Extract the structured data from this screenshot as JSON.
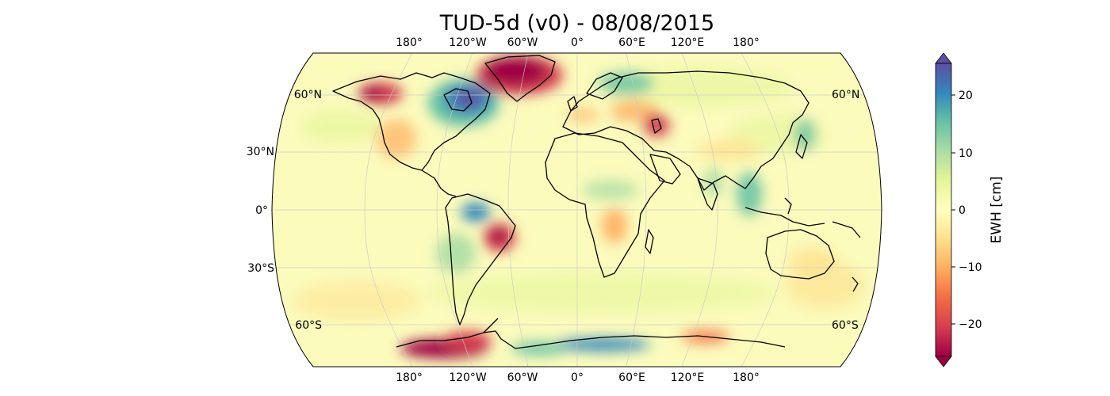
{
  "title": "TUD-5d (v0) - 08/08/2015",
  "map": {
    "projection": "Robinson",
    "top_lon_labels": [
      "180°",
      "120°W",
      "60°W",
      "0°",
      "60°E",
      "120°E",
      "180°"
    ],
    "bottom_lon_labels": [
      "180°",
      "120°W",
      "60°W",
      "0°",
      "60°E",
      "120°E",
      "180°"
    ],
    "left_lat_labels": [
      "60°N",
      "30°N",
      "0°",
      "30°S",
      "60°S"
    ],
    "right_lat_labels": [
      "60°N",
      "60°S"
    ],
    "gridlines": true,
    "coastlines": true
  },
  "colorbar": {
    "label": "EWH [cm]",
    "ticks": [
      "20",
      "10",
      "0",
      "−10",
      "−20"
    ],
    "range": [
      -25,
      25
    ],
    "extend": "both",
    "colormap": "Spectral",
    "colors": [
      "#9e0142",
      "#d53e4f",
      "#f46d43",
      "#fdae61",
      "#fee08b",
      "#ffffbf",
      "#e6f598",
      "#abdda4",
      "#66c2a5",
      "#3288bd",
      "#5e4fa2"
    ]
  },
  "anomalies": [
    {
      "region": "Greenland",
      "sign": "negative"
    },
    {
      "region": "Alaska",
      "sign": "negative"
    },
    {
      "region": "Hudson Bay",
      "sign": "positive"
    },
    {
      "region": "Amazon",
      "sign": "positive"
    },
    {
      "region": "Brazil",
      "sign": "negative"
    },
    {
      "region": "Caspian",
      "sign": "negative"
    },
    {
      "region": "West Antarctica",
      "sign": "negative"
    },
    {
      "region": "East Antarctica",
      "sign": "positive"
    }
  ]
}
